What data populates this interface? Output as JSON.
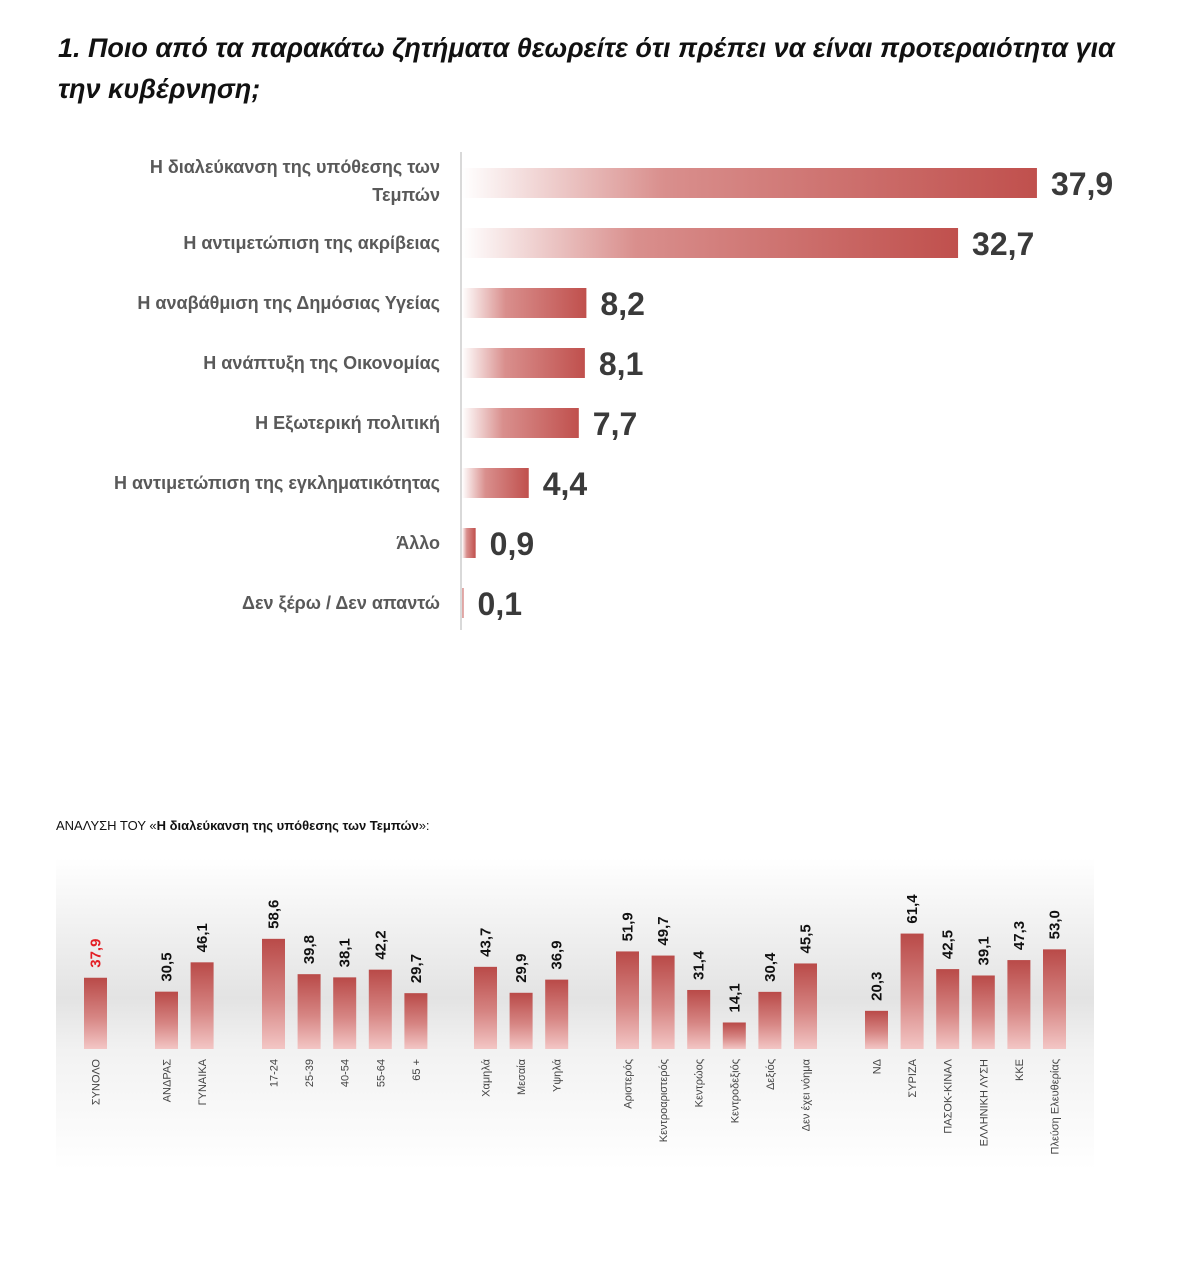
{
  "title": "1. Ποιο από τα παρακάτω ζητήματα θεωρείτε ότι πρέπει να είναι προτεραιότητα για την κυβέρνηση;",
  "chart_data": [
    {
      "type": "bar",
      "orientation": "horizontal",
      "title": "1. Ποιο από τα παρακάτω ζητήματα θεωρείτε ότι πρέπει να είναι προτεραιότητα για την κυβέρνηση;",
      "categories": [
        [
          "Η διαλεύκανση της υπόθεσης  των",
          "Τεμπών"
        ],
        [
          "Η αντιμετώπιση της ακρίβειας"
        ],
        [
          "Η αναβάθμιση της Δημόσιας Υγείας"
        ],
        [
          "Η ανάπτυξη της Οικονομίας"
        ],
        [
          "Η Εξωτερική πολιτική"
        ],
        [
          "Η αντιμετώπιση της εγκληματικότητας"
        ],
        [
          "Άλλο"
        ],
        [
          "Δεν ξέρω / Δεν απαντώ"
        ]
      ],
      "values": [
        37.9,
        32.7,
        8.2,
        8.1,
        7.7,
        4.4,
        0.9,
        0.1
      ],
      "labels": [
        "37,9",
        "32,7",
        "8,2",
        "8,1",
        "7,7",
        "4,4",
        "0,9",
        "0,1"
      ],
      "bar_color": "#c0504d"
    },
    {
      "type": "bar",
      "orientation": "vertical",
      "title_prefix": "ΑΝΑΛΥΣΗ ΤΟΥ «",
      "title_bold": "Η διαλεύκανση της υπόθεσης  των Τεμπών",
      "title_suffix": "»:",
      "groups": [
        {
          "categories": [
            "ΣΥΝΟΛΟ"
          ],
          "values": [
            37.9
          ],
          "labels": [
            "37,9"
          ],
          "highlight": [
            true
          ]
        },
        {
          "categories": [
            "ΑΝΔΡΑΣ",
            "ΓΥΝΑΙΚΑ"
          ],
          "values": [
            30.5,
            46.1
          ],
          "labels": [
            "30,5",
            "46,1"
          ]
        },
        {
          "categories": [
            "17-24",
            "25-39",
            "40-54",
            "55-64",
            "65 +"
          ],
          "values": [
            58.6,
            39.8,
            38.1,
            42.2,
            29.7
          ],
          "labels": [
            "58,6",
            "39,8",
            "38,1",
            "42,2",
            "29,7"
          ]
        },
        {
          "categories": [
            "Χαμηλά",
            "Μεσαία",
            "Υψηλά"
          ],
          "values": [
            43.7,
            29.9,
            36.9
          ],
          "labels": [
            "43,7",
            "29,9",
            "36,9"
          ]
        },
        {
          "categories": [
            "Αριστερός",
            "Κεντροαριστερός",
            "Κεντρώος",
            "Κεντροδεξιός",
            "Δεξιός",
            "Δεν έχει νόημα"
          ],
          "values": [
            51.9,
            49.7,
            31.4,
            14.1,
            30.4,
            45.5
          ],
          "labels": [
            "51,9",
            "49,7",
            "31,4",
            "14,1",
            "30,4",
            "45,5"
          ]
        },
        {
          "categories": [
            "ΝΔ",
            "ΣΥΡΙΖΑ",
            "ΠΑΣΟΚ-ΚΙΝΑΛ",
            "ΕΛΛΗΝΙΚΗ ΛΥΣΗ",
            "ΚΚΕ",
            "Πλεύση Ελευθερίας"
          ],
          "values": [
            20.3,
            61.4,
            42.5,
            39.1,
            47.3,
            53.0
          ],
          "labels": [
            "20,3",
            "61,4",
            "42,5",
            "39,1",
            "47,3",
            "53,0"
          ]
        }
      ],
      "bar_color": "#b94a48",
      "highlight_color": "#e31e24"
    }
  ]
}
